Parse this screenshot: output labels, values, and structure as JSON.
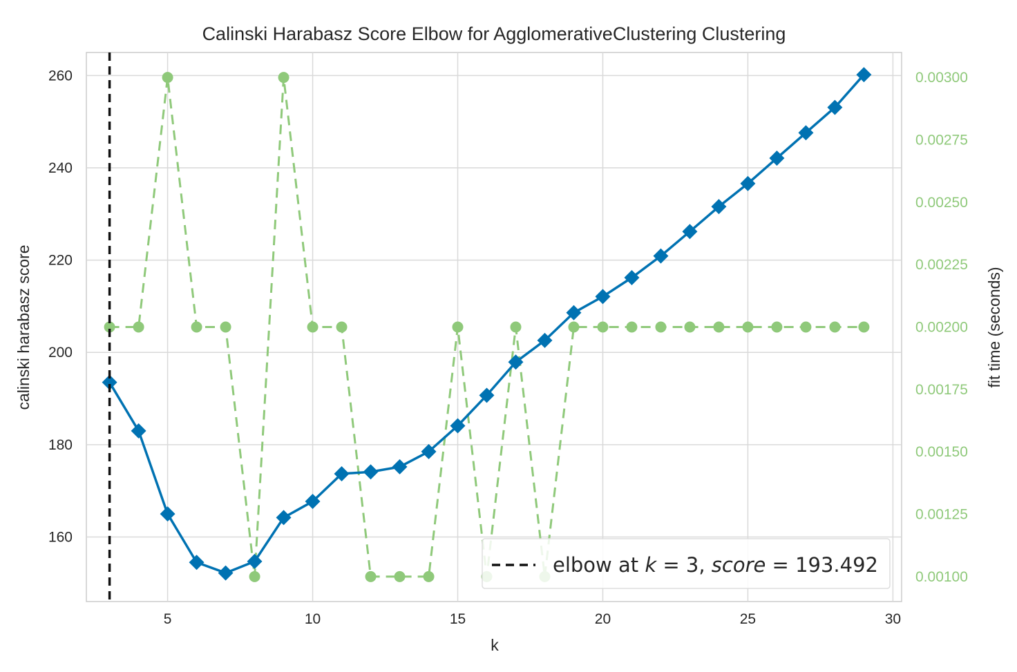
{
  "chart_data": {
    "type": "line",
    "title": "Calinski Harabasz Score Elbow for AgglomerativeClustering Clustering",
    "xlabel": "k",
    "ylabel": "calinski harabasz score",
    "ylabel_right": "fit time (seconds)",
    "xlim": [
      2.2,
      30.3
    ],
    "ylim": [
      146,
      265
    ],
    "ylim_right": [
      0.0009,
      0.0031
    ],
    "x_ticks": [
      5,
      10,
      15,
      20,
      25,
      30
    ],
    "y_ticks": [
      160,
      180,
      200,
      220,
      240,
      260
    ],
    "y_right_ticks": [
      "0.00100",
      "0.00125",
      "0.00150",
      "0.00175",
      "0.00200",
      "0.00225",
      "0.00250",
      "0.00275",
      "0.00300"
    ],
    "y_right_tick_values": [
      0.001,
      0.00125,
      0.0015,
      0.00175,
      0.002,
      0.00225,
      0.0025,
      0.00275,
      0.003
    ],
    "grid": true,
    "legend_position": "bottom-right",
    "series": [
      {
        "name": "calinski harabasz score",
        "axis": "left",
        "color": "#0072b2",
        "marker": "diamond",
        "x": [
          3,
          4,
          5,
          6,
          7,
          8,
          9,
          10,
          11,
          12,
          13,
          14,
          15,
          16,
          17,
          18,
          19,
          20,
          21,
          22,
          23,
          24,
          25,
          26,
          27,
          28,
          29
        ],
        "values": [
          193.5,
          183,
          165,
          154.5,
          152.2,
          154.7,
          164.2,
          167.7,
          173.7,
          174.1,
          175.2,
          178.5,
          184.1,
          190.7,
          197.9,
          202.6,
          208.6,
          212.1,
          216.2,
          220.9,
          226.2,
          231.6,
          236.6,
          242.1,
          247.6,
          253.1,
          260.2
        ]
      },
      {
        "axis": "right",
        "color": "#8fc97a",
        "style": "dashed",
        "marker": "circle",
        "x": [
          3,
          4,
          5,
          6,
          7,
          8,
          9,
          10,
          11,
          12,
          13,
          14,
          15,
          16,
          17,
          18,
          19,
          20,
          21,
          22,
          23,
          24,
          25,
          26,
          27,
          28,
          29
        ],
        "values": [
          0.002,
          0.002,
          0.003,
          0.002,
          0.002,
          0.001,
          0.003,
          0.002,
          0.002,
          0.001,
          0.001,
          0.001,
          0.002,
          0.001,
          0.002,
          0.001,
          0.002,
          0.002,
          0.002,
          0.002,
          0.002,
          0.002,
          0.002,
          0.002,
          0.002,
          0.002,
          0.002
        ]
      }
    ],
    "elbow": {
      "k": 3,
      "score": 193.492,
      "legend_label_prefix": "elbow at ",
      "legend_label_k": "k",
      "legend_label_mid": " = 3, ",
      "legend_label_score": "score",
      "legend_label_suffix": " = 193.492"
    }
  }
}
